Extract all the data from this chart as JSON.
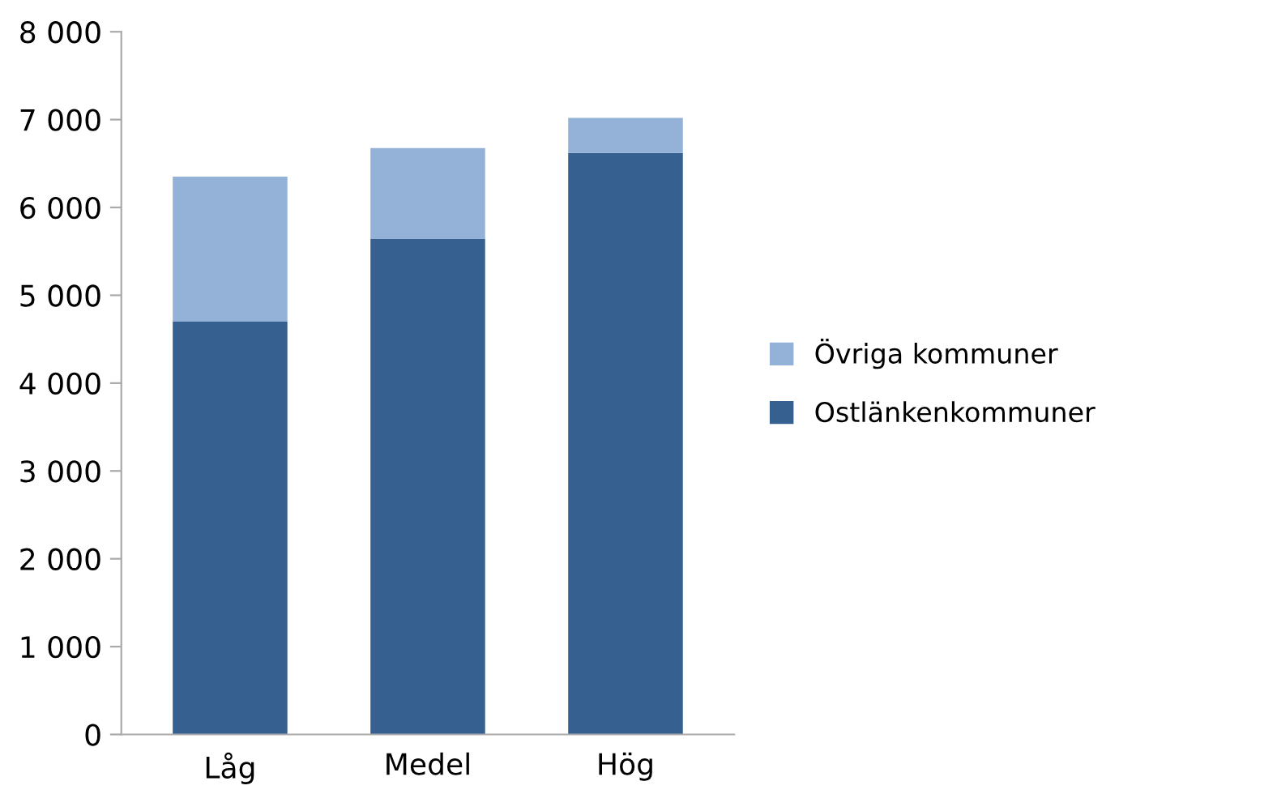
{
  "chart_data": {
    "type": "bar",
    "stacked": true,
    "categories": [
      "Låg",
      "Medel",
      "Hög"
    ],
    "series": [
      {
        "name": "Ostlänkenkommuner",
        "color": "#36608f",
        "values": [
          4700,
          5640,
          6620
        ]
      },
      {
        "name": "Övriga kommuner",
        "color": "#94b2d7",
        "values": [
          1650,
          1035,
          400
        ]
      }
    ],
    "ylim": [
      0,
      8000
    ],
    "yticks": [
      {
        "value": 0,
        "label": "0"
      },
      {
        "value": 1000,
        "label": "1 000"
      },
      {
        "value": 2000,
        "label": "2 000"
      },
      {
        "value": 3000,
        "label": "3 000"
      },
      {
        "value": 4000,
        "label": "4 000"
      },
      {
        "value": 5000,
        "label": "5 000"
      },
      {
        "value": 6000,
        "label": "6 000"
      },
      {
        "value": 7000,
        "label": "7 000"
      },
      {
        "value": 8000,
        "label": "8 000"
      }
    ],
    "grid": false,
    "legend": "right"
  }
}
